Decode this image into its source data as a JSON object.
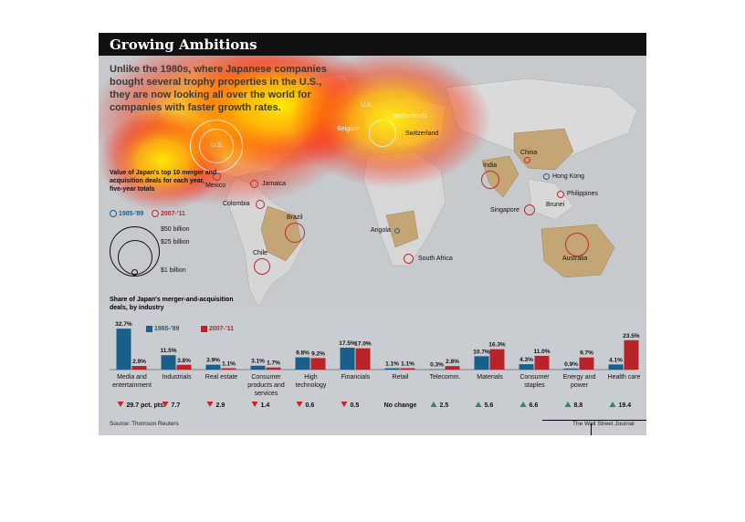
{
  "header": {
    "title": "Growing Ambitions",
    "intro": "Unlike the 1980s, where Japanese companies bought several trophy properties in the U.S., they are now looking all over the world for companies with faster growth rates."
  },
  "map": {
    "bubble_legend": {
      "title": "Value of Japan's top 10 merger and acquisition deals for each year, five-year totals",
      "series_1985": "1985-'89",
      "series_2007": "2007-'11",
      "size_50": "$50 billion",
      "size_25": "$25 billion",
      "size_1": "$1 billion"
    },
    "places": {
      "us": "U.S.",
      "uk": "U.K.",
      "netherlands": "Netherlands",
      "belgium": "Belgium",
      "switzerland": "Switzerland",
      "mexico": "Mexico",
      "jamaica": "Jamaica",
      "colombia": "Colombia",
      "brazil": "Brazil",
      "chile": "Chile",
      "angola": "Angola",
      "south_africa": "South Africa",
      "india": "India",
      "china": "China",
      "hong_kong": "Hong Kong",
      "philippines": "Philippines",
      "brunei": "Brunei",
      "singapore": "Singapore",
      "australia": "Australia"
    }
  },
  "chart_data": {
    "type": "bar",
    "title": "Share of Japan's merger-and-acquisition deals, by industry",
    "categories": [
      "Media and entertainment",
      "Industrials",
      "Real estate",
      "Consumer products and services",
      "High technology",
      "Financials",
      "Retail",
      "Telecomm.",
      "Materials",
      "Consumer staples",
      "Energy and power",
      "Health care"
    ],
    "series": [
      {
        "name": "1985-'89",
        "color": "#1a5f8a",
        "values": [
          32.7,
          11.5,
          3.9,
          3.1,
          9.8,
          17.5,
          1.1,
          0.3,
          10.7,
          4.3,
          0.9,
          4.1
        ],
        "labels": [
          "32.7%",
          "11.5%",
          "3.9%",
          "3.1%",
          "9.8%",
          "17.5%",
          "1.1%",
          "0.3%",
          "10.7%",
          "4.3%",
          "0.9%",
          "4.1%"
        ]
      },
      {
        "name": "2007-'11",
        "color": "#b8242a",
        "values": [
          2.9,
          3.8,
          1.1,
          1.7,
          9.2,
          17.0,
          1.1,
          2.8,
          16.3,
          11.0,
          9.7,
          23.5
        ],
        "labels": [
          "2.9%",
          "3.8%",
          "1.1%",
          "1.7%",
          "9.2%",
          "17.0%",
          "1.1%",
          "2.8%",
          "16.3%",
          "11.0%",
          "9.7%",
          "23.5%"
        ]
      }
    ],
    "changes": [
      {
        "dir": "down",
        "text": "29.7 pct. pts."
      },
      {
        "dir": "down",
        "text": "7.7"
      },
      {
        "dir": "down",
        "text": "2.9"
      },
      {
        "dir": "down",
        "text": "1.4"
      },
      {
        "dir": "down",
        "text": "0.6"
      },
      {
        "dir": "down",
        "text": "0.5"
      },
      {
        "dir": "none",
        "text": "No change"
      },
      {
        "dir": "up",
        "text": "2.5"
      },
      {
        "dir": "up",
        "text": "5.6"
      },
      {
        "dir": "up",
        "text": "6.6"
      },
      {
        "dir": "up",
        "text": "8.8"
      },
      {
        "dir": "up",
        "text": "19.4"
      }
    ],
    "ylim": [
      0,
      35
    ],
    "up_color": "#2e8b57",
    "down_color": "#c0282d"
  },
  "footer": {
    "source": "Source: Thomson Reuters",
    "credit": "The Wall Street Journal"
  }
}
